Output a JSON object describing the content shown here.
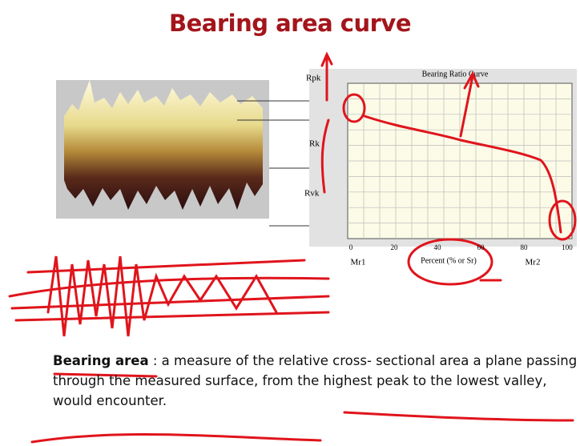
{
  "title": "Bearing area curve",
  "figure": {
    "surface_labels": [
      "Rpk",
      "Rk",
      "Rvk"
    ],
    "chart_title": "Bearing Ratio Curve",
    "x_ticks": [
      "0",
      "20",
      "40",
      "60",
      "80",
      "100"
    ],
    "x_axis_label": "Percent (% or Sr)",
    "markers": [
      "Mr1",
      "Mr2"
    ]
  },
  "definition": {
    "term": "Bearing area",
    "text": " : a measure of the relative cross- sectional area a plane passing through the measured surface, from the highest peak to the lowest valley, would encounter."
  }
}
